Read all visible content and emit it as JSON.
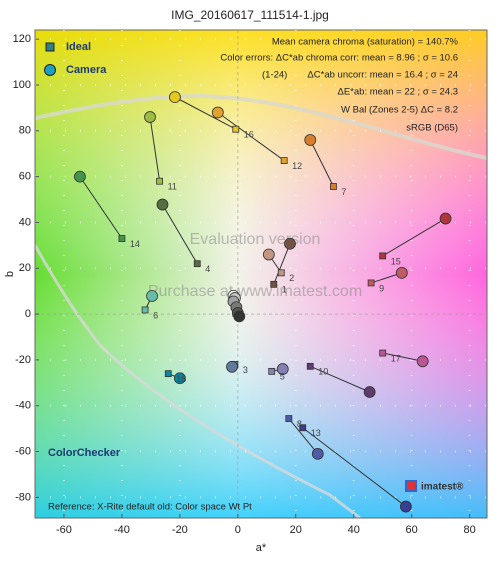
{
  "chart_data": {
    "type": "scatter",
    "title": "IMG_20160617_111514-1.jpg",
    "xlabel": "a*",
    "ylabel": "b",
    "xlim": [
      -70,
      86
    ],
    "ylim": [
      -89,
      124
    ],
    "xticks": [
      -60,
      -40,
      -20,
      0,
      20,
      40,
      60,
      80
    ],
    "yticks": [
      -80,
      -60,
      -40,
      -20,
      0,
      20,
      40,
      60,
      80,
      100,
      120
    ],
    "grid": true,
    "legend": "upper left",
    "patch_labels": [
      "1",
      "2",
      "3",
      "4",
      "5",
      "6",
      "7",
      "8",
      "9",
      "10",
      "11",
      "12",
      "13",
      "14",
      "15",
      "16",
      "17",
      "18",
      null,
      null,
      null,
      null,
      null,
      null
    ],
    "patch_colors": [
      "#735244",
      "#c29682",
      "#627a9d",
      "#576c43",
      "#8580b1",
      "#67bdaa",
      "#d67e2c",
      "#505ba6",
      "#c15a63",
      "#5e3c6c",
      "#9dbc40",
      "#e0a32e",
      "#383d96",
      "#469449",
      "#af363c",
      "#e7c71f",
      "#bb5695",
      "#0885a1",
      "#f3f3f2",
      "#c8c8c8",
      "#a0a0a0",
      "#7a7a79",
      "#555555",
      "#343434"
    ],
    "series": [
      {
        "name": "Ideal",
        "color": "#2f7f86",
        "marker": "square",
        "x": [
          12.4,
          15,
          -1,
          -14,
          11.7,
          -32,
          33,
          17.6,
          46,
          25,
          -27,
          16,
          22.4,
          -40,
          50,
          -0.7,
          50,
          -24,
          -0.4,
          -0.6,
          -0.2,
          0.1,
          -0.3,
          0.3
        ],
        "y": [
          13,
          18,
          -22,
          22,
          -25,
          1.8,
          55.7,
          -45.6,
          13.6,
          -22.8,
          58,
          67,
          -49.6,
          33,
          25.4,
          80.7,
          -17,
          -26,
          1.6,
          0.2,
          0.4,
          0.3,
          0.5,
          -0.8
        ]
      },
      {
        "name": "Camera",
        "color": "#1f9fbf",
        "marker": "circle",
        "x": [
          18,
          10.7,
          -2,
          -26,
          15.5,
          -29.6,
          25,
          27.6,
          56.6,
          45.5,
          -30.3,
          -6.9,
          58,
          -54.5,
          71.7,
          -21.7,
          63.8,
          -20,
          -1.5,
          -1,
          -1.5,
          -0.5,
          0,
          0.5
        ],
        "y": [
          30.7,
          26,
          -23,
          47.8,
          -24,
          7.9,
          76,
          -61,
          18,
          -34,
          86,
          88,
          -84,
          60,
          41.7,
          94.7,
          -20.6,
          -28,
          8,
          7,
          5.5,
          3,
          0.5,
          -1
        ]
      }
    ],
    "annotations": [
      "Mean camera chroma (saturation) = 140.7%",
      "Color errors:  ΔC*ab chroma corr:  mean = 8.96 ;  σ = 10.6",
      "(1-24)",
      "ΔC*ab uncorr:  mean = 16.4 ;  σ = 24",
      "ΔE*ab:  mean = 22 ;  σ = 24.3",
      "W Bal (Zones 2-5) ΔC = 8.2",
      "sRGB (D65)"
    ],
    "chart_label": "ColorChecker",
    "reference": "Reference: X-Rite default old: Color space Wt Pt",
    "watermarks": [
      "Evaluation version",
      "Purchase at www.imatest.com"
    ],
    "logo": "imatest®"
  }
}
